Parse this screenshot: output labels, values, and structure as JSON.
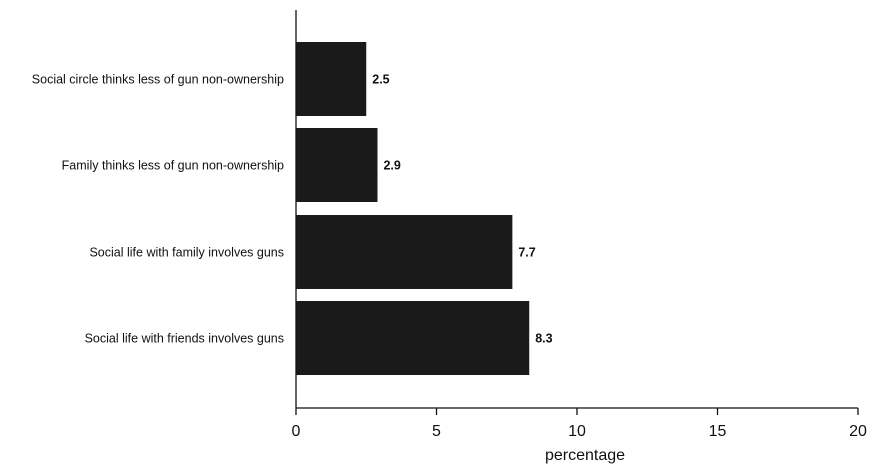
{
  "chart_data": {
    "type": "bar",
    "orientation": "horizontal",
    "categories": [
      "Social circle thinks less of gun non-ownership",
      "Family thinks less of gun non-ownership",
      "Social life with family involves guns",
      "Social life with friends involves guns"
    ],
    "values": [
      2.5,
      2.9,
      7.7,
      8.3
    ],
    "value_labels": [
      "2.5",
      "2.9",
      "7.7",
      "8.3"
    ],
    "xlabel": "percentage",
    "xlim": [
      0,
      20
    ],
    "xticks": [
      0,
      5,
      10,
      15,
      20
    ],
    "xtick_labels": [
      "0",
      "5",
      "10",
      "15",
      "20"
    ],
    "grid": false,
    "bar_color": "#1a1a1a"
  }
}
